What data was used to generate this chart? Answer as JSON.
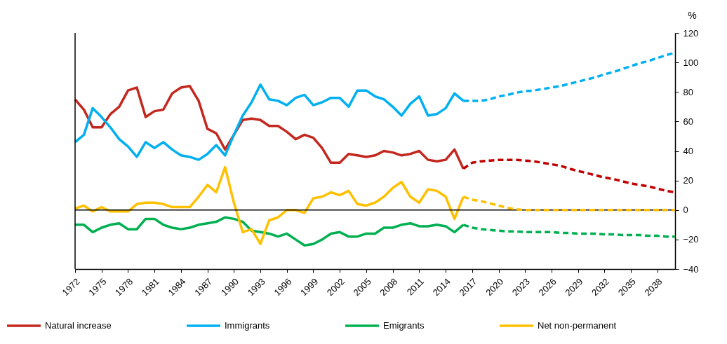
{
  "chart_data": {
    "type": "line",
    "ylabel": "%",
    "legend": "bottom",
    "x": [
      1972,
      1973,
      1974,
      1975,
      1976,
      1977,
      1978,
      1979,
      1980,
      1981,
      1982,
      1983,
      1984,
      1985,
      1986,
      1987,
      1988,
      1989,
      1990,
      1991,
      1992,
      1993,
      1994,
      1995,
      1996,
      1997,
      1998,
      1999,
      2000,
      2001,
      2002,
      2003,
      2004,
      2005,
      2006,
      2007,
      2008,
      2009,
      2010,
      2011,
      2012,
      2013,
      2014,
      2015,
      2016,
      2017,
      2018,
      2019,
      2020,
      2021,
      2022,
      2023,
      2024,
      2025,
      2026,
      2027,
      2028,
      2029,
      2030,
      2031,
      2032,
      2033,
      2034,
      2035,
      2036,
      2037,
      2038,
      2039,
      2040
    ],
    "xlim": [
      1972,
      2040
    ],
    "xticks": [
      1972,
      1975,
      1978,
      1981,
      1984,
      1987,
      1990,
      1993,
      1996,
      1999,
      2002,
      2005,
      2008,
      2011,
      2014,
      2017,
      2020,
      2023,
      2026,
      2029,
      2032,
      2035,
      2038
    ],
    "ylim": [
      -40,
      120
    ],
    "yticks": [
      -40,
      -20,
      0,
      20,
      40,
      60,
      80,
      100,
      120
    ],
    "ref_lines": [
      {
        "axis": "y",
        "value": 0,
        "color": "#000000"
      }
    ],
    "series": [
      {
        "name": "Natural increase",
        "color": "#c3281f",
        "values": [
          75,
          68,
          56,
          56,
          65,
          70,
          81,
          83,
          63,
          67,
          68,
          79,
          83,
          84,
          74,
          55,
          52,
          41,
          51,
          61,
          62,
          61,
          57,
          57,
          53,
          48,
          51,
          49,
          42,
          32,
          32,
          38,
          37,
          36,
          37,
          40,
          39,
          37,
          38,
          40,
          34,
          33,
          34,
          41,
          28,
          null,
          null,
          null,
          null,
          null,
          null,
          null,
          null,
          null,
          null,
          null,
          null,
          null,
          null,
          null,
          null,
          null,
          null,
          null,
          null,
          null,
          null,
          null,
          null
        ]
      },
      {
        "name": "Immigrants",
        "color": "#00b0f0",
        "values": [
          46,
          51,
          69,
          63,
          56,
          48,
          43,
          36,
          46,
          42,
          46,
          41,
          37,
          36,
          34,
          38,
          44,
          37,
          51,
          64,
          73,
          85,
          75,
          74,
          71,
          76,
          78,
          71,
          73,
          76,
          76,
          70,
          81,
          81,
          77,
          75,
          70,
          64,
          72,
          77,
          64,
          65,
          69,
          79,
          74,
          null,
          null,
          null,
          null,
          null,
          null,
          null,
          null,
          null,
          null,
          null,
          null,
          null,
          null,
          null,
          null,
          null,
          null,
          null,
          null,
          null,
          null,
          null,
          null
        ]
      },
      {
        "name": "Emigrants",
        "color": "#00b050",
        "values": [
          -10,
          -10,
          -15,
          -12,
          -10,
          -9,
          -13,
          -13,
          -6,
          -6,
          -10,
          -12,
          -13,
          -12,
          -10,
          -9,
          -8,
          -5,
          -6,
          -8,
          -14,
          -15,
          -16,
          -18,
          -16,
          -20,
          -24,
          -23,
          -20,
          -16,
          -15,
          -18,
          -18,
          -16,
          -16,
          -12,
          -12,
          -10,
          -9,
          -11,
          -11,
          -10,
          -11,
          -15,
          -10,
          null,
          null,
          null,
          null,
          null,
          null,
          null,
          null,
          null,
          null,
          null,
          null,
          null,
          null,
          null,
          null,
          null,
          null,
          null,
          null,
          null,
          null,
          null,
          null
        ]
      },
      {
        "name": "Net non-permanent",
        "color": "#ffc000",
        "values": [
          1,
          3,
          -1,
          2,
          -1,
          -1,
          -1,
          4,
          5,
          5,
          4,
          2,
          2,
          2,
          9,
          17,
          12,
          29,
          5,
          -15,
          -13,
          -23,
          -7,
          -5,
          0,
          0,
          -2,
          8,
          9,
          12,
          10,
          13,
          4,
          3,
          5,
          9,
          15,
          19,
          9,
          5,
          14,
          13,
          9,
          -6,
          9,
          null,
          null,
          null,
          null,
          null,
          null,
          null,
          null,
          null,
          null,
          null,
          null,
          null,
          null,
          null,
          null,
          null,
          null,
          null,
          null,
          null,
          null,
          null,
          null
        ]
      },
      {
        "color": "#c00000",
        "line_style": "dashed",
        "values": [
          null,
          null,
          null,
          null,
          null,
          null,
          null,
          null,
          null,
          null,
          null,
          null,
          null,
          null,
          null,
          null,
          null,
          null,
          null,
          null,
          null,
          null,
          null,
          null,
          null,
          null,
          null,
          null,
          null,
          null,
          null,
          null,
          null,
          null,
          null,
          null,
          null,
          null,
          null,
          null,
          null,
          null,
          null,
          null,
          28,
          32,
          33,
          33.5,
          34,
          34,
          34,
          33.5,
          33,
          32,
          31,
          30,
          28,
          26.5,
          25,
          23.5,
          22,
          21,
          19.5,
          18,
          17,
          16,
          14.5,
          13,
          12
        ]
      },
      {
        "color": "#00b0f0",
        "line_style": "dashed",
        "values": [
          null,
          null,
          null,
          null,
          null,
          null,
          null,
          null,
          null,
          null,
          null,
          null,
          null,
          null,
          null,
          null,
          null,
          null,
          null,
          null,
          null,
          null,
          null,
          null,
          null,
          null,
          null,
          null,
          null,
          null,
          null,
          null,
          null,
          null,
          null,
          null,
          null,
          null,
          null,
          null,
          null,
          null,
          null,
          null,
          74,
          74,
          74,
          75,
          77,
          78,
          79.5,
          80.5,
          81,
          82,
          83,
          84,
          85.5,
          87,
          88.5,
          90,
          92,
          93.5,
          95.5,
          97.5,
          99.5,
          101,
          103,
          105,
          106.5
        ]
      },
      {
        "color": "#00b050",
        "line_style": "dashed",
        "values": [
          null,
          null,
          null,
          null,
          null,
          null,
          null,
          null,
          null,
          null,
          null,
          null,
          null,
          null,
          null,
          null,
          null,
          null,
          null,
          null,
          null,
          null,
          null,
          null,
          null,
          null,
          null,
          null,
          null,
          null,
          null,
          null,
          null,
          null,
          null,
          null,
          null,
          null,
          null,
          null,
          null,
          null,
          null,
          null,
          -10,
          -12,
          -13,
          -13.5,
          -14,
          -14.5,
          -14.5,
          -15,
          -15,
          -15,
          -15,
          -15.5,
          -15.5,
          -16,
          -16,
          -16,
          -16.5,
          -16.5,
          -17,
          -17,
          -17,
          -17.5,
          -17.5,
          -18,
          -18
        ]
      },
      {
        "color": "#ffc000",
        "line_style": "dashed",
        "values": [
          null,
          null,
          null,
          null,
          null,
          null,
          null,
          null,
          null,
          null,
          null,
          null,
          null,
          null,
          null,
          null,
          null,
          null,
          null,
          null,
          null,
          null,
          null,
          null,
          null,
          null,
          null,
          null,
          null,
          null,
          null,
          null,
          null,
          null,
          null,
          null,
          null,
          null,
          null,
          null,
          null,
          null,
          null,
          null,
          9,
          7,
          6,
          4.5,
          3,
          1.5,
          0.5,
          0,
          0,
          0,
          0,
          0,
          0,
          0,
          0,
          0,
          0,
          0,
          0,
          0,
          0,
          0,
          0,
          0,
          0
        ]
      }
    ]
  }
}
